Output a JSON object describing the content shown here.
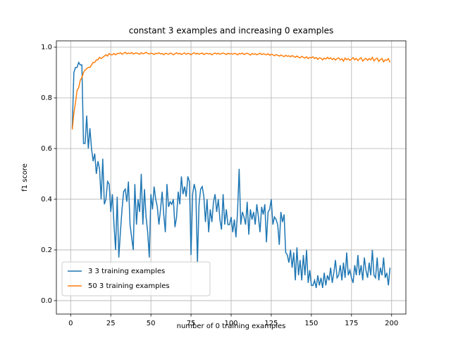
{
  "chart_data": {
    "type": "line",
    "title": "constant 3 examples and increasing 0 examples",
    "xlabel": "number of 0 training examples",
    "ylabel": "f1 score",
    "x": [
      1,
      2,
      3,
      4,
      5,
      6,
      7,
      8,
      9,
      10,
      11,
      12,
      13,
      14,
      15,
      16,
      17,
      18,
      19,
      20,
      21,
      22,
      23,
      24,
      25,
      26,
      27,
      28,
      29,
      30,
      31,
      32,
      33,
      34,
      35,
      36,
      37,
      38,
      39,
      40,
      41,
      42,
      43,
      44,
      45,
      46,
      47,
      48,
      49,
      50,
      51,
      52,
      53,
      54,
      55,
      56,
      57,
      58,
      59,
      60,
      61,
      62,
      63,
      64,
      65,
      66,
      67,
      68,
      69,
      70,
      71,
      72,
      73,
      74,
      75,
      76,
      77,
      78,
      79,
      80,
      81,
      82,
      83,
      84,
      85,
      86,
      87,
      88,
      89,
      90,
      91,
      92,
      93,
      94,
      95,
      96,
      97,
      98,
      99,
      100,
      101,
      102,
      103,
      104,
      105,
      106,
      107,
      108,
      109,
      110,
      111,
      112,
      113,
      114,
      115,
      116,
      117,
      118,
      119,
      120,
      121,
      122,
      123,
      124,
      125,
      126,
      127,
      128,
      129,
      130,
      131,
      132,
      133,
      134,
      135,
      136,
      137,
      138,
      139,
      140,
      141,
      142,
      143,
      144,
      145,
      146,
      147,
      148,
      149,
      150,
      151,
      152,
      153,
      154,
      155,
      156,
      157,
      158,
      159,
      160,
      161,
      162,
      163,
      164,
      165,
      166,
      167,
      168,
      169,
      170,
      171,
      172,
      173,
      174,
      175,
      176,
      177,
      178,
      179,
      180,
      181,
      182,
      183,
      184,
      185,
      186,
      187,
      188,
      189,
      190,
      191,
      192,
      193,
      194,
      195,
      196,
      197,
      198,
      199
    ],
    "series": [
      {
        "name": "3 3 training examples",
        "color": "#1f77b4",
        "values": [
          0.68,
          0.9,
          0.92,
          0.92,
          0.94,
          0.93,
          0.93,
          0.62,
          0.62,
          0.73,
          0.6,
          0.68,
          0.6,
          0.55,
          0.58,
          0.5,
          0.55,
          0.52,
          0.4,
          0.56,
          0.38,
          0.4,
          0.47,
          0.46,
          0.35,
          0.42,
          0.3,
          0.2,
          0.41,
          0.17,
          0.27,
          0.36,
          0.43,
          0.44,
          0.39,
          0.47,
          0.3,
          0.25,
          0.2,
          0.46,
          0.3,
          0.4,
          0.35,
          0.5,
          0.3,
          0.44,
          0.33,
          0.27,
          0.17,
          0.42,
          0.36,
          0.45,
          0.4,
          0.37,
          0.3,
          0.36,
          0.43,
          0.34,
          0.27,
          0.46,
          0.37,
          0.39,
          0.38,
          0.4,
          0.29,
          0.33,
          0.43,
          0.38,
          0.49,
          0.42,
          0.45,
          0.41,
          0.49,
          0.47,
          0.18,
          0.42,
          0.46,
          0.43,
          0.15,
          0.38,
          0.44,
          0.45,
          0.41,
          0.31,
          0.4,
          0.27,
          0.36,
          0.31,
          0.39,
          0.42,
          0.35,
          0.4,
          0.32,
          0.28,
          0.42,
          0.3,
          0.36,
          0.3,
          0.3,
          0.33,
          0.27,
          0.32,
          0.25,
          0.35,
          0.52,
          0.3,
          0.35,
          0.33,
          0.3,
          0.39,
          0.26,
          0.36,
          0.32,
          0.35,
          0.3,
          0.38,
          0.33,
          0.27,
          0.37,
          0.34,
          0.38,
          0.23,
          0.35,
          0.36,
          0.4,
          0.3,
          0.33,
          0.32,
          0.3,
          0.22,
          0.35,
          0.31,
          0.34,
          0.19,
          0.18,
          0.15,
          0.2,
          0.13,
          0.19,
          0.08,
          0.21,
          0.1,
          0.16,
          0.08,
          0.18,
          0.1,
          0.2,
          0.07,
          0.12,
          0.06,
          0.06,
          0.08,
          0.05,
          0.1,
          0.06,
          0.09,
          0.05,
          0.11,
          0.06,
          0.1,
          0.08,
          0.13,
          0.07,
          0.11,
          0.16,
          0.09,
          0.1,
          0.14,
          0.08,
          0.15,
          0.09,
          0.19,
          0.1,
          0.12,
          0.09,
          0.07,
          0.14,
          0.1,
          0.18,
          0.1,
          0.14,
          0.08,
          0.17,
          0.12,
          0.09,
          0.15,
          0.1,
          0.2,
          0.1,
          0.09,
          0.17,
          0.08,
          0.13,
          0.1,
          0.17,
          0.09,
          0.11,
          0.06,
          0.13
        ]
      },
      {
        "name": "50 3 training examples",
        "color": "#ff7f0e",
        "values": [
          0.675,
          0.74,
          0.78,
          0.83,
          0.84,
          0.87,
          0.88,
          0.9,
          0.91,
          0.915,
          0.92,
          0.92,
          0.93,
          0.94,
          0.94,
          0.95,
          0.95,
          0.96,
          0.955,
          0.96,
          0.965,
          0.97,
          0.965,
          0.975,
          0.97,
          0.97,
          0.975,
          0.97,
          0.975,
          0.975,
          0.978,
          0.972,
          0.976,
          0.98,
          0.974,
          0.977,
          0.975,
          0.979,
          0.973,
          0.976,
          0.977,
          0.975,
          0.972,
          0.978,
          0.974,
          0.976,
          0.98,
          0.975,
          0.973,
          0.977,
          0.975,
          0.971,
          0.976,
          0.974,
          0.978,
          0.973,
          0.975,
          0.97,
          0.976,
          0.974,
          0.972,
          0.977,
          0.975,
          0.97,
          0.974,
          0.978,
          0.973,
          0.976,
          0.971,
          0.975,
          0.977,
          0.972,
          0.976,
          0.974,
          0.97,
          0.975,
          0.978,
          0.973,
          0.976,
          0.972,
          0.975,
          0.977,
          0.971,
          0.974,
          0.976,
          0.973,
          0.975,
          0.97,
          0.974,
          0.977,
          0.973,
          0.976,
          0.972,
          0.975,
          0.977,
          0.974,
          0.971,
          0.976,
          0.973,
          0.975,
          0.972,
          0.976,
          0.974,
          0.97,
          0.975,
          0.973,
          0.977,
          0.971,
          0.974,
          0.976,
          0.973,
          0.969,
          0.975,
          0.972,
          0.974,
          0.97,
          0.973,
          0.976,
          0.971,
          0.974,
          0.972,
          0.97,
          0.974,
          0.968,
          0.972,
          0.97,
          0.966,
          0.971,
          0.968,
          0.965,
          0.969,
          0.966,
          0.963,
          0.968,
          0.964,
          0.966,
          0.962,
          0.967,
          0.963,
          0.96,
          0.965,
          0.961,
          0.958,
          0.964,
          0.96,
          0.957,
          0.962,
          0.955,
          0.96,
          0.958,
          0.962,
          0.955,
          0.959,
          0.952,
          0.958,
          0.956,
          0.95,
          0.957,
          0.953,
          0.96,
          0.954,
          0.958,
          0.951,
          0.956,
          0.949,
          0.955,
          0.958,
          0.95,
          0.954,
          0.945,
          0.957,
          0.951,
          0.955,
          0.948,
          0.953,
          0.959,
          0.95,
          0.956,
          0.947,
          0.954,
          0.958,
          0.945,
          0.952,
          0.956,
          0.948,
          0.955,
          0.95,
          0.96,
          0.946,
          0.953,
          0.957,
          0.944,
          0.951,
          0.955,
          0.942,
          0.95,
          0.948,
          0.955,
          0.94
        ]
      }
    ],
    "xlim": [
      -8.9,
      208.9
    ],
    "ylim": [
      -0.053,
      1.025
    ],
    "xticks": [
      0,
      25,
      50,
      75,
      100,
      125,
      150,
      175,
      200
    ],
    "yticks": [
      {
        "value": 0,
        "label": "0.0"
      },
      0.2,
      0.4,
      0.6,
      0.8,
      {
        "value": 1,
        "label": "1.0"
      }
    ],
    "grid": true,
    "legend": "lower left"
  }
}
